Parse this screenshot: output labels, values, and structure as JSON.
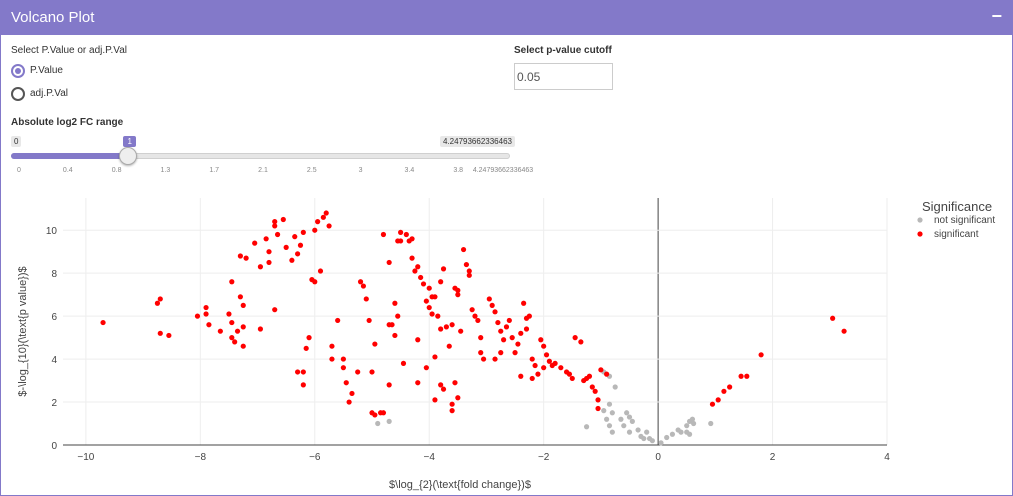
{
  "panel": {
    "title": "Volcano Plot",
    "collapse_label": "−"
  },
  "controls": {
    "pvalue_type_label": "Select P.Value or adj.P.Val",
    "options": [
      {
        "label": "P.Value",
        "selected": true
      },
      {
        "label": "adj.P.Val",
        "selected": false
      }
    ],
    "cutoff_label": "Select p-value cutoff",
    "cutoff_value": "0.05",
    "fc_label": "Absolute log2 FC range",
    "slider": {
      "min": 0,
      "max": 4.24793662336463,
      "value": 1,
      "min_label": "0",
      "max_label": "4.24793662336463",
      "value_label": "1",
      "ticks": [
        "0",
        "0.4",
        "0.8",
        "1.3",
        "1.7",
        "2.1",
        "2.5",
        "3",
        "3.4",
        "3.8",
        "4.24793662336463"
      ]
    }
  },
  "colors": {
    "accent": "#8379c9",
    "significant": "#ff0000",
    "not_significant": "#b8b8b8"
  },
  "chart_data": {
    "type": "scatter",
    "xlabel": "$\\log_{2}(\\text{fold change})$",
    "ylabel": "$-\\log_{10}(\\text{p value})$",
    "xlim": [
      -10.4,
      4.0
    ],
    "ylim": [
      0,
      11.5
    ],
    "xticks": [
      -10,
      -8,
      -6,
      -4,
      -2,
      0,
      2,
      4
    ],
    "yticks": [
      0,
      2,
      4,
      6,
      8,
      10
    ],
    "grid": true,
    "legend": {
      "title": "Significance",
      "position": "top-right"
    },
    "series": [
      {
        "name": "not significant",
        "color": "#b8b8b8",
        "points": [
          [
            -0.95,
            3.4
          ],
          [
            -0.85,
            3.2
          ],
          [
            -0.75,
            2.7
          ],
          [
            -0.85,
            1.9
          ],
          [
            -0.95,
            1.6
          ],
          [
            -0.8,
            1.5
          ],
          [
            -0.55,
            1.5
          ],
          [
            -0.5,
            1.3
          ],
          [
            -0.45,
            1.1
          ],
          [
            -0.65,
            1.2
          ],
          [
            -0.9,
            1.2
          ],
          [
            -0.85,
            0.9
          ],
          [
            -0.6,
            0.9
          ],
          [
            -0.8,
            0.6
          ],
          [
            -0.5,
            0.6
          ],
          [
            -0.35,
            0.7
          ],
          [
            -0.2,
            0.6
          ],
          [
            -0.3,
            0.4
          ],
          [
            -0.15,
            0.3
          ],
          [
            -0.1,
            0.2
          ],
          [
            -0.25,
            0.3
          ],
          [
            0.05,
            0.1
          ],
          [
            0.25,
            0.5
          ],
          [
            0.35,
            0.7
          ],
          [
            0.4,
            0.6
          ],
          [
            0.5,
            0.9
          ],
          [
            0.55,
            1.1
          ],
          [
            0.6,
            1.2
          ],
          [
            0.62,
            1.0
          ],
          [
            0.5,
            0.6
          ],
          [
            0.55,
            0.5
          ],
          [
            0.92,
            1.0
          ],
          [
            0.15,
            0.35
          ],
          [
            -1.25,
            0.85
          ],
          [
            -4.9,
            1.0
          ],
          [
            -4.7,
            1.1
          ]
        ]
      },
      {
        "name": "significant",
        "color": "#ff0000",
        "points": [
          [
            -9.7,
            5.7
          ],
          [
            -8.75,
            6.6
          ],
          [
            -8.7,
            6.8
          ],
          [
            -8.7,
            5.2
          ],
          [
            -8.55,
            5.1
          ],
          [
            -8.05,
            6.0
          ],
          [
            -7.9,
            6.4
          ],
          [
            -7.9,
            6.1
          ],
          [
            -7.85,
            5.6
          ],
          [
            -7.65,
            5.3
          ],
          [
            -7.5,
            6.1
          ],
          [
            -7.45,
            5.7
          ],
          [
            -7.45,
            7.6
          ],
          [
            -7.45,
            5.0
          ],
          [
            -7.4,
            4.8
          ],
          [
            -7.35,
            5.3
          ],
          [
            -7.3,
            6.9
          ],
          [
            -7.25,
            6.5
          ],
          [
            -7.25,
            4.6
          ],
          [
            -7.25,
            5.5
          ],
          [
            -7.3,
            8.8
          ],
          [
            -7.2,
            8.7
          ],
          [
            -7.05,
            9.4
          ],
          [
            -6.95,
            8.3
          ],
          [
            -6.95,
            5.4
          ],
          [
            -6.85,
            9.6
          ],
          [
            -6.8,
            8.5
          ],
          [
            -6.8,
            9.0
          ],
          [
            -6.7,
            10.2
          ],
          [
            -6.7,
            10.4
          ],
          [
            -6.65,
            9.8
          ],
          [
            -6.7,
            6.3
          ],
          [
            -6.55,
            10.5
          ],
          [
            -6.5,
            9.2
          ],
          [
            -6.4,
            8.6
          ],
          [
            -6.35,
            9.7
          ],
          [
            -6.3,
            8.9
          ],
          [
            -6.3,
            3.4
          ],
          [
            -6.25,
            9.3
          ],
          [
            -6.2,
            9.9
          ],
          [
            -6.2,
            2.8
          ],
          [
            -6.2,
            3.4
          ],
          [
            -6.15,
            4.5
          ],
          [
            -6.1,
            5.0
          ],
          [
            -6.05,
            7.7
          ],
          [
            -6.0,
            7.6
          ],
          [
            -6.0,
            10.0
          ],
          [
            -5.95,
            10.4
          ],
          [
            -5.9,
            8.1
          ],
          [
            -5.85,
            10.6
          ],
          [
            -5.8,
            10.8
          ],
          [
            -5.75,
            10.2
          ],
          [
            -5.7,
            4.0
          ],
          [
            -5.5,
            3.6
          ],
          [
            -5.45,
            2.9
          ],
          [
            -5.4,
            2.0
          ],
          [
            -5.2,
            7.6
          ],
          [
            -5.15,
            7.4
          ],
          [
            -5.1,
            6.8
          ],
          [
            -5.05,
            5.8
          ],
          [
            -5.0,
            3.4
          ],
          [
            -4.95,
            4.7
          ],
          [
            -4.8,
            9.8
          ],
          [
            -4.7,
            8.5
          ],
          [
            -4.65,
            5.6
          ],
          [
            -4.6,
            5.1
          ],
          [
            -4.55,
            9.5
          ],
          [
            -4.5,
            9.9
          ],
          [
            -4.5,
            9.5
          ],
          [
            -4.4,
            9.8
          ],
          [
            -4.35,
            9.5
          ],
          [
            -4.3,
            9.6
          ],
          [
            -4.3,
            8.7
          ],
          [
            -4.25,
            8.1
          ],
          [
            -4.2,
            8.3
          ],
          [
            -4.15,
            7.8
          ],
          [
            -4.1,
            7.5
          ],
          [
            -4.05,
            6.7
          ],
          [
            -4.0,
            7.3
          ],
          [
            -4.0,
            6.4
          ],
          [
            -3.95,
            6.1
          ],
          [
            -3.95,
            6.9
          ],
          [
            -3.9,
            6.9
          ],
          [
            -3.85,
            6.0
          ],
          [
            -3.8,
            5.4
          ],
          [
            -3.8,
            7.6
          ],
          [
            -3.75,
            8.2
          ],
          [
            -3.7,
            5.5
          ],
          [
            -3.65,
            4.6
          ],
          [
            -3.6,
            5.6
          ],
          [
            -3.55,
            7.3
          ],
          [
            -3.55,
            2.9
          ],
          [
            -3.5,
            7.0
          ],
          [
            -3.5,
            7.2
          ],
          [
            -3.45,
            5.3
          ],
          [
            -3.4,
            9.1
          ],
          [
            -3.35,
            8.4
          ],
          [
            -3.3,
            8.1
          ],
          [
            -3.3,
            7.9
          ],
          [
            -3.25,
            6.3
          ],
          [
            -3.2,
            6.0
          ],
          [
            -3.15,
            5.8
          ],
          [
            -3.1,
            5.0
          ],
          [
            -3.1,
            4.3
          ],
          [
            -3.05,
            4.0
          ],
          [
            -2.95,
            6.8
          ],
          [
            -2.9,
            6.5
          ],
          [
            -2.85,
            6.2
          ],
          [
            -2.8,
            5.7
          ],
          [
            -2.75,
            5.3
          ],
          [
            -2.7,
            4.9
          ],
          [
            -2.65,
            5.5
          ],
          [
            -2.6,
            5.8
          ],
          [
            -2.55,
            5.0
          ],
          [
            -2.5,
            4.3
          ],
          [
            -2.45,
            4.7
          ],
          [
            -2.4,
            5.2
          ],
          [
            -2.35,
            6.6
          ],
          [
            -2.3,
            5.9
          ],
          [
            -2.25,
            6.0
          ],
          [
            -2.2,
            4.0
          ],
          [
            -2.15,
            3.7
          ],
          [
            -2.1,
            3.3
          ],
          [
            -2.05,
            4.9
          ],
          [
            -2.0,
            4.6
          ],
          [
            -1.95,
            4.2
          ],
          [
            -1.9,
            3.9
          ],
          [
            -1.85,
            3.7
          ],
          [
            -1.8,
            3.8
          ],
          [
            -1.7,
            3.6
          ],
          [
            -1.6,
            3.4
          ],
          [
            -1.55,
            3.3
          ],
          [
            -1.5,
            3.1
          ],
          [
            -1.45,
            5.0
          ],
          [
            -1.35,
            4.8
          ],
          [
            -1.3,
            3.0
          ],
          [
            -1.25,
            3.1
          ],
          [
            -1.2,
            3.2
          ],
          [
            -1.15,
            2.7
          ],
          [
            -1.1,
            2.5
          ],
          [
            -1.05,
            2.1
          ],
          [
            -1.0,
            3.5
          ],
          [
            -0.9,
            3.3
          ],
          [
            -5.5,
            4.0
          ],
          [
            -5.6,
            5.8
          ],
          [
            -5.7,
            4.6
          ],
          [
            -5.35,
            2.4
          ],
          [
            -5.25,
            3.4
          ],
          [
            -3.9,
            4.1
          ],
          [
            -3.8,
            2.8
          ],
          [
            -3.75,
            2.6
          ],
          [
            -3.9,
            2.1
          ],
          [
            -3.6,
            1.9
          ],
          [
            -4.05,
            3.6
          ],
          [
            -4.2,
            2.9
          ],
          [
            -4.45,
            3.8
          ],
          [
            -4.8,
            1.5
          ],
          [
            -4.85,
            1.5
          ],
          [
            -4.95,
            1.4
          ],
          [
            -5.0,
            1.5
          ],
          [
            -4.6,
            6.6
          ],
          [
            -4.55,
            6.0
          ],
          [
            -4.7,
            5.6
          ],
          [
            -4.2,
            4.9
          ],
          [
            -2.85,
            4.0
          ],
          [
            -2.75,
            4.3
          ],
          [
            -2.4,
            3.2
          ],
          [
            -2.2,
            3.1
          ],
          [
            -2.0,
            3.6
          ],
          [
            -3.6,
            1.6
          ],
          [
            -3.5,
            2.2
          ],
          [
            -4.7,
            2.8
          ],
          [
            -2.3,
            5.4
          ],
          [
            -1.05,
            1.7
          ],
          [
            0.95,
            1.9
          ],
          [
            1.05,
            2.1
          ],
          [
            1.15,
            2.5
          ],
          [
            1.25,
            2.7
          ],
          [
            1.45,
            3.2
          ],
          [
            1.55,
            3.2
          ],
          [
            1.8,
            4.2
          ],
          [
            3.05,
            5.9
          ],
          [
            3.25,
            5.3
          ]
        ]
      }
    ]
  }
}
